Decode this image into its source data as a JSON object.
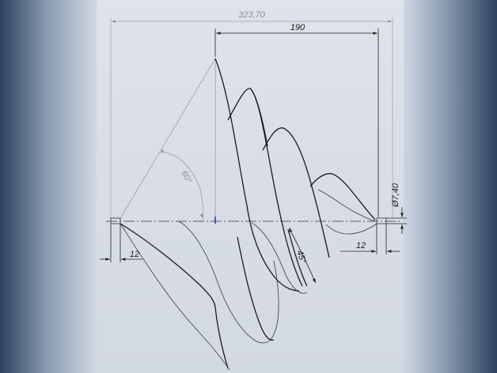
{
  "drawing": {
    "dimensions": {
      "overall_length": "323,70",
      "upper_span": "190",
      "diameter": "Ø7,40",
      "left_stub": "12",
      "right_stub": "12",
      "angle_cone": "60°",
      "angle_helix": "45°"
    }
  }
}
